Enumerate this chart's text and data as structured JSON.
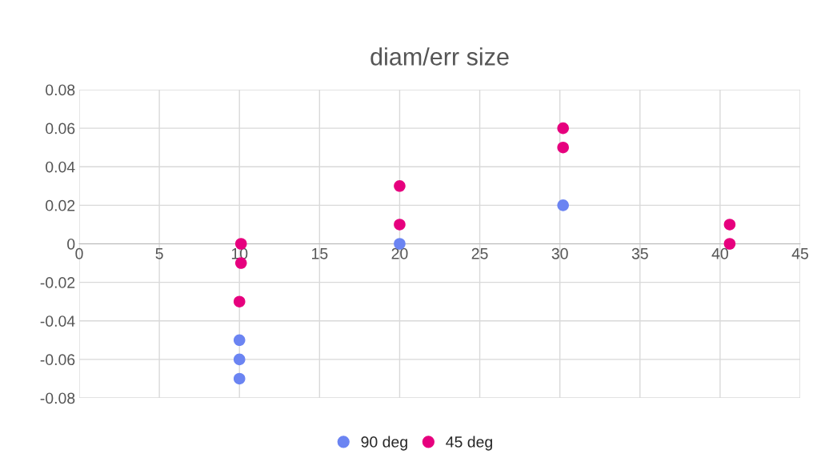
{
  "chart_data": {
    "type": "scatter",
    "title": "diam/err size",
    "series": [
      {
        "name": "90 deg",
        "color": "#6b84f2",
        "x": [
          10,
          10,
          10,
          20,
          30.2
        ],
        "values": [
          -0.05,
          -0.06,
          -0.07,
          0,
          0.02
        ]
      },
      {
        "name": "45 deg",
        "color": "#e6007e",
        "x": [
          10.1,
          10.1,
          10,
          20,
          20,
          30.2,
          30.2,
          40.6,
          40.6
        ],
        "values": [
          0,
          -0.01,
          -0.03,
          0.03,
          0.01,
          0.06,
          0.05,
          0.01,
          0
        ]
      }
    ],
    "xlim": [
      0,
      45
    ],
    "xticks": [
      0,
      5,
      10,
      15,
      20,
      25,
      30,
      35,
      40,
      45
    ],
    "ylim": [
      -0.08,
      0.08
    ],
    "yticks": [
      -0.08,
      -0.06,
      -0.04,
      -0.02,
      0,
      0.02,
      0.04,
      0.06,
      0.08
    ],
    "grid": true,
    "legend": "bottom",
    "marker": "circle"
  }
}
